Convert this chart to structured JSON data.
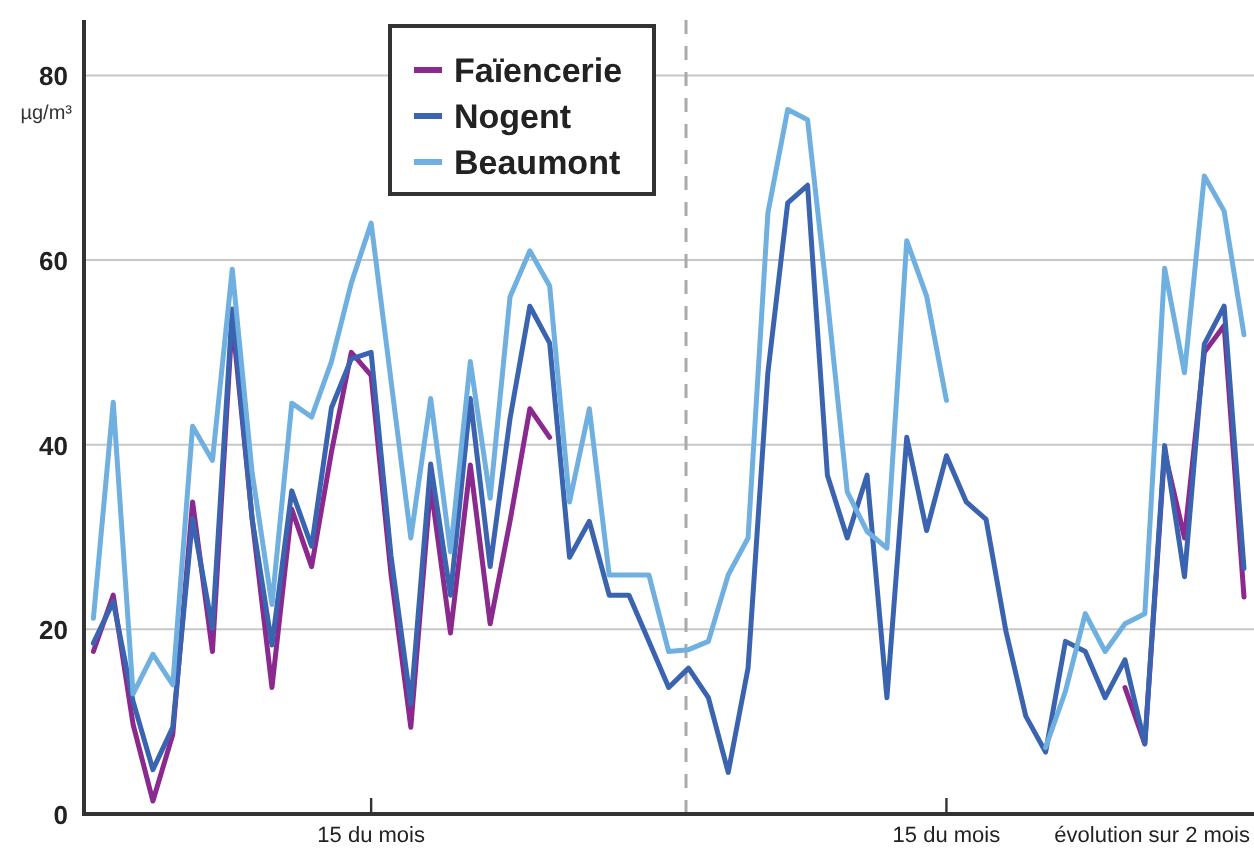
{
  "chart_data": {
    "type": "line",
    "ylabel": "µg/m³",
    "xlabel": "évolution sur 2 mois",
    "categories": [
      null,
      null,
      null,
      null,
      null,
      null,
      null,
      null,
      null,
      null,
      null,
      null,
      null,
      null,
      "15 du mois",
      null,
      null,
      null,
      null,
      null,
      null,
      null,
      null,
      null,
      null,
      null,
      null,
      null,
      null,
      null,
      null,
      null,
      null,
      null,
      null,
      null,
      null,
      null,
      null,
      null,
      null,
      null,
      null,
      "15 du mois",
      null,
      null,
      null,
      null,
      null,
      null,
      null,
      null,
      null,
      null,
      null,
      null,
      null,
      null,
      null
    ],
    "ylim": [
      0,
      86
    ],
    "yticks": [
      0,
      20,
      40,
      60,
      80
    ],
    "grid": "y",
    "legend": "top",
    "line_style": "solid",
    "marker": "none",
    "series": [
      {
        "name": "Faïencerie",
        "color": "#8b2a8e",
        "values": [
          17.6,
          23.7,
          9.7,
          1.4,
          8.6,
          33.8,
          17.6,
          53.6,
          32,
          13.7,
          33,
          26.8,
          39.2,
          50,
          47.5,
          26,
          9.4,
          35.6,
          19.6,
          37.8,
          20.6,
          31.7,
          43.9,
          40.8,
          null,
          null,
          null,
          null,
          null,
          null,
          null,
          null,
          null,
          null,
          null,
          null,
          null,
          null,
          null,
          null,
          null,
          null,
          null,
          null,
          null,
          null,
          null,
          null,
          null,
          null,
          null,
          null,
          13.7,
          7.6,
          39.2,
          29.9,
          50,
          52.9,
          23.5
        ]
      },
      {
        "name": "Nogent",
        "color": "#3b64b0",
        "values": [
          18.5,
          23,
          12.2,
          4.8,
          9.4,
          32,
          20.1,
          54.7,
          32,
          18.3,
          35,
          29,
          44,
          49.3,
          50,
          28,
          11.9,
          37.9,
          23.7,
          45,
          26.8,
          42.8,
          55,
          51,
          27.8,
          31.7,
          23.7,
          23.7,
          18.7,
          13.7,
          15.8,
          12.6,
          4.5,
          15.8,
          47.8,
          66.2,
          68.1,
          36.7,
          29.9,
          36.7,
          12.6,
          40.8,
          30.7,
          38.8,
          33.8,
          31.9,
          19.8,
          10.6,
          6.7,
          18.7,
          17.6,
          12.6,
          16.7,
          7.6,
          39.9,
          25.7,
          50.9,
          55,
          26.6
        ]
      },
      {
        "name": "Beaumont",
        "color": "#6fb0e0",
        "values": [
          21.2,
          44.6,
          13,
          17.3,
          14,
          42,
          38.3,
          59,
          37,
          22.7,
          44.5,
          43,
          49,
          57.5,
          64,
          47,
          29.9,
          45,
          28.4,
          49,
          34.2,
          56,
          61,
          57.2,
          33.8,
          43.9,
          25.9,
          25.9,
          25.9,
          17.6,
          17.8,
          18.7,
          25.9,
          29.9,
          65.1,
          76.3,
          75.2,
          55.8,
          34.9,
          30.6,
          28.8,
          62.1,
          56.1,
          44.8,
          null,
          null,
          null,
          null,
          7.2,
          13.3,
          21.7,
          17.6,
          20.6,
          21.7,
          59.1,
          47.8,
          69.1,
          65.3,
          51.9
        ]
      }
    ]
  }
}
